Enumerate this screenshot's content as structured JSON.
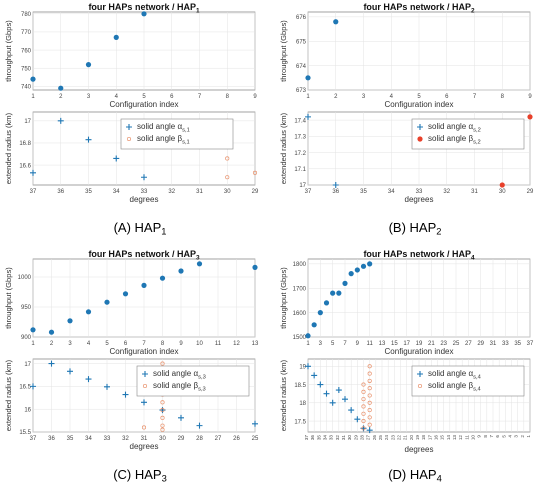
{
  "panels": [
    {
      "caption": "(A) HAP",
      "caption_sub": "1",
      "title_prefix": "four HAPs network / HAP",
      "title_sub": "1",
      "chart_data": [
        {
          "type": "scatter",
          "title": "four HAPs network / HAP",
          "xlabel": "Configuration index",
          "ylabel": "throughput (Gbps)",
          "xlim": [
            1,
            9
          ],
          "ylim": [
            738,
            781
          ],
          "xticks": [
            "1",
            "2",
            "3",
            "4",
            "5",
            "6",
            "7",
            "8",
            "9"
          ],
          "yticks": [
            "740",
            "750",
            "760",
            "770",
            "780"
          ],
          "series": [
            {
              "x": [
                1,
                2,
                3,
                4,
                5
              ],
              "y": [
                744,
                739,
                752,
                767,
                780
              ],
              "color": "#1f77b4",
              "marker": "dot"
            }
          ]
        },
        {
          "type": "scatter",
          "xlabel": "degrees",
          "ylabel": "extended radius (km)",
          "xcats": [
            "37",
            "36",
            "35",
            "34",
            "33",
            "32",
            "31",
            "30",
            "29"
          ],
          "ylim": [
            16.42,
            17.08
          ],
          "yticks": [
            "16.6",
            "16.8",
            "17"
          ],
          "legend_position": "top-center",
          "series": [
            {
              "name": "solid angle α",
              "name_sub": "s,1",
              "color": "#1f77b4",
              "marker": "plus",
              "x": [
                "37",
                "36",
                "35",
                "34",
                "33"
              ],
              "y": [
                16.53,
                17.0,
                16.83,
                16.66,
                16.49
              ]
            },
            {
              "name": "solid angle β",
              "name_sub": "s,1",
              "color": "#e8906a",
              "marker": "circle",
              "x": [
                "30",
                "30",
                "30",
                "30",
                "29"
              ],
              "y": [
                17.0,
                16.83,
                16.66,
                16.49,
                16.53
              ]
            }
          ]
        }
      ]
    },
    {
      "caption": "(B) HAP",
      "caption_sub": "2",
      "title_prefix": "four HAPs network / HAP",
      "title_sub": "2",
      "chart_data": [
        {
          "type": "scatter",
          "title": "four HAPs network / HAP",
          "xlabel": "Configuration index",
          "ylabel": "throughput (Gbps)",
          "xlim": [
            1,
            9
          ],
          "ylim": [
            673,
            676.2
          ],
          "xticks": [
            "1",
            "2",
            "3",
            "4",
            "5",
            "6",
            "7",
            "8",
            "9"
          ],
          "yticks": [
            "673",
            "674",
            "675",
            "676"
          ],
          "series": [
            {
              "x": [
                1,
                2
              ],
              "y": [
                673.5,
                675.8
              ],
              "color": "#1f77b4",
              "marker": "dot"
            }
          ]
        },
        {
          "type": "scatter",
          "xlabel": "degrees",
          "ylabel": "extended radius (km)",
          "xcats": [
            "37",
            "36",
            "35",
            "34",
            "33",
            "32",
            "31",
            "30",
            "29"
          ],
          "ylim": [
            17,
            17.45
          ],
          "yticks": [
            "17",
            "17.1",
            "17.2",
            "17.3",
            "17.4"
          ],
          "legend_position": "top-right",
          "series": [
            {
              "name": "solid angle α",
              "name_sub": "s,2",
              "color": "#1f77b4",
              "marker": "plus",
              "x": [
                "37",
                "36"
              ],
              "y": [
                17.42,
                17.0
              ]
            },
            {
              "name": "solid angle β",
              "name_sub": "s,2",
              "color": "#e8402a",
              "marker": "dot",
              "x": [
                "30",
                "29"
              ],
              "y": [
                17.0,
                17.42
              ]
            }
          ]
        }
      ]
    },
    {
      "caption": "(C) HAP",
      "caption_sub": "3",
      "title_prefix": "four HAPs network / HAP",
      "title_sub": "3",
      "chart_data": [
        {
          "type": "scatter",
          "title": "four HAPs network / HAP",
          "xlabel": "Configuration index",
          "ylabel": "throughput (Gbps)",
          "xlim": [
            1,
            13
          ],
          "ylim": [
            900,
            1030
          ],
          "xticks": [
            "1",
            "2",
            "3",
            "4",
            "5",
            "6",
            "7",
            "8",
            "9",
            "10",
            "11",
            "12",
            "13"
          ],
          "yticks": [
            "900",
            "950",
            "1000"
          ],
          "series": [
            {
              "x": [
                1,
                2,
                3,
                4,
                5,
                6,
                7,
                8,
                9,
                10,
                13
              ],
              "y": [
                912,
                908,
                927,
                942,
                958,
                972,
                986,
                998,
                1010,
                1022,
                1016
              ],
              "color": "#1f77b4",
              "marker": "dot"
            }
          ]
        },
        {
          "type": "scatter",
          "xlabel": "degrees",
          "ylabel": "extended radius (km)",
          "xcats": [
            "37",
            "36",
            "35",
            "34",
            "33",
            "32",
            "31",
            "30",
            "29",
            "28",
            "27",
            "26",
            "25"
          ],
          "ylim": [
            15.5,
            17.1
          ],
          "yticks": [
            "15.5",
            "16",
            "16.5",
            "17"
          ],
          "legend_position": "top-right",
          "series": [
            {
              "name": "solid angle α",
              "name_sub": "s,3",
              "color": "#1f77b4",
              "marker": "plus",
              "x": [
                "37",
                "36",
                "35",
                "34",
                "33",
                "32",
                "31",
                "30",
                "29",
                "28",
                "25"
              ],
              "y": [
                16.5,
                17.0,
                16.83,
                16.66,
                16.49,
                16.32,
                16.15,
                15.98,
                15.81,
                15.64,
                15.68
              ]
            },
            {
              "name": "solid angle β",
              "name_sub": "s,3",
              "color": "#e8906a",
              "marker": "circle",
              "x": [
                "30",
                "30",
                "30",
                "30",
                "30",
                "30",
                "30",
                "30",
                "30",
                "30",
                "31"
              ],
              "y": [
                17.0,
                16.83,
                16.66,
                16.49,
                16.32,
                16.15,
                15.98,
                15.81,
                15.64,
                15.55,
                15.6
              ]
            }
          ]
        }
      ]
    },
    {
      "caption": "(D) HAP",
      "caption_sub": "4",
      "title_prefix": "four HAPs network / HAP",
      "title_sub": "4",
      "chart_data": [
        {
          "type": "scatter",
          "title": "four HAPs network / HAP",
          "xlabel": "Configuration index",
          "ylabel": "throughput (Gbps)",
          "xlim": [
            1,
            37
          ],
          "ylim": [
            1500,
            1820
          ],
          "xticks": [
            "1",
            "3",
            "5",
            "7",
            "9",
            "11",
            "13",
            "15",
            "17",
            "19",
            "21",
            "23",
            "25",
            "27",
            "29",
            "31",
            "33",
            "35",
            "37"
          ],
          "yticks": [
            "1500",
            "1600",
            "1700",
            "1800"
          ],
          "series": [
            {
              "x": [
                1,
                2,
                3,
                4,
                5,
                6,
                7,
                8,
                9,
                10,
                11
              ],
              "y": [
                1505,
                1550,
                1600,
                1640,
                1680,
                1680,
                1720,
                1760,
                1775,
                1790,
                1800
              ],
              "color": "#1f77b4",
              "marker": "dot"
            }
          ]
        },
        {
          "type": "scatter",
          "xlabel": "degrees",
          "ylabel": "extended radius (km)",
          "xcats": [
            "37",
            "36",
            "35",
            "34",
            "33",
            "32",
            "31",
            "30",
            "29",
            "28",
            "27",
            "26",
            "25",
            "24",
            "23",
            "22",
            "21",
            "20",
            "19",
            "18",
            "17",
            "16",
            "15",
            "14",
            "13",
            "12",
            "11",
            "10",
            "9",
            "8",
            "7",
            "6",
            "5",
            "4",
            "3",
            "2",
            "1"
          ],
          "ylim": [
            17.2,
            19.2
          ],
          "yticks": [
            "17.5",
            "18",
            "18.5",
            "19"
          ],
          "legend_position": "top-right",
          "series": [
            {
              "name": "solid angle α",
              "name_sub": "s,4",
              "color": "#1f77b4",
              "marker": "plus",
              "x": [
                "37",
                "36",
                "35",
                "34",
                "33",
                "32",
                "31",
                "30",
                "29",
                "28",
                "27"
              ],
              "y": [
                19.0,
                18.75,
                18.5,
                18.25,
                18.0,
                18.35,
                18.1,
                17.8,
                17.55,
                17.3,
                17.25
              ]
            },
            {
              "name": "solid angle β",
              "name_sub": "s,4",
              "color": "#e8906a",
              "marker": "circle",
              "x": [
                "28",
                "28",
                "28",
                "28",
                "28",
                "28",
                "28",
                "27",
                "27",
                "27",
                "27",
                "27",
                "27",
                "27",
                "27",
                "27"
              ],
              "y": [
                17.3,
                17.5,
                17.7,
                17.9,
                18.1,
                18.3,
                18.5,
                17.4,
                17.6,
                17.8,
                18.0,
                18.2,
                18.4,
                18.6,
                18.8,
                19.0
              ]
            }
          ]
        }
      ]
    }
  ]
}
